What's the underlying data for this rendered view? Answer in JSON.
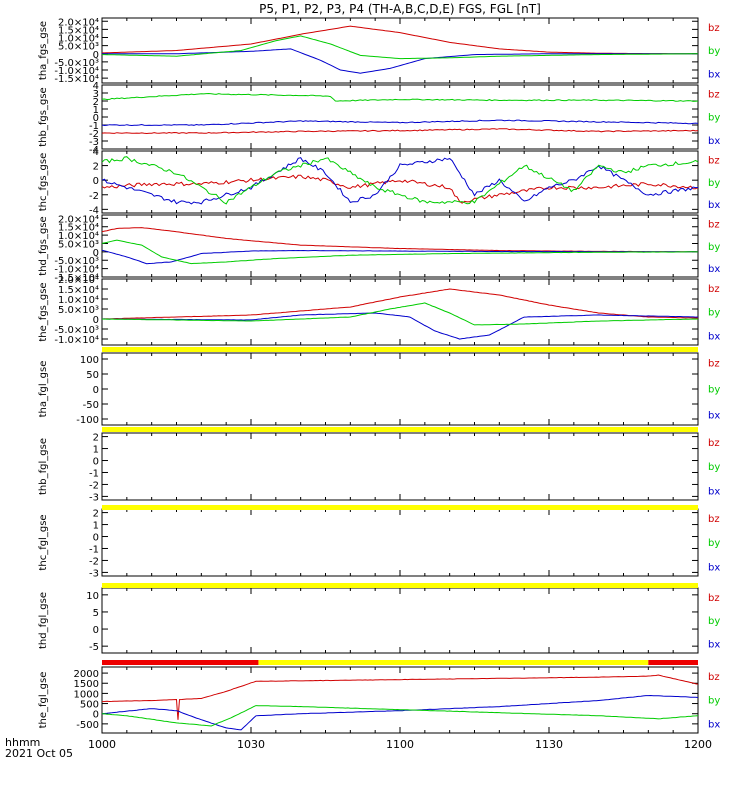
{
  "title": "P5, P1, P2, P3, P4 (TH-A,B,C,D,E) FGS, FGL [nT]",
  "time_axis": {
    "ticks": [
      "1000",
      "1030",
      "1100",
      "1130",
      "1200"
    ],
    "label_line1": "hhmm",
    "label_line2": "2021 Oct 05",
    "range_minutes": [
      0,
      120
    ]
  },
  "colors": {
    "bz": "#d00000",
    "by": "#00cc00",
    "bx": "#0000cc",
    "bar_yellow": "#ffff00",
    "bar_red": "#ee0000"
  },
  "chart_data": [
    {
      "type": "line",
      "ylabel": "tha_fgs_gse",
      "ylim": [
        -18000,
        22000
      ],
      "ytick_labels": [
        "2.0×10⁴",
        "1.5×10⁴",
        "1.0×10⁴",
        "5.0×10³",
        "0",
        "-5.0×10³",
        "-1.0×10⁴",
        "-1.5×10⁴"
      ],
      "ytick_values": [
        20000,
        15000,
        10000,
        5000,
        0,
        -5000,
        -10000,
        -15000
      ],
      "legend": [
        "bz",
        "by",
        "bx"
      ],
      "series": [
        {
          "name": "bz",
          "x": [
            0,
            15,
            30,
            40,
            50,
            60,
            70,
            80,
            90,
            100,
            110,
            120
          ],
          "y": [
            500,
            2000,
            6000,
            12000,
            17000,
            13000,
            7000,
            3000,
            1000,
            300,
            100,
            0
          ]
        },
        {
          "name": "by",
          "x": [
            0,
            15,
            28,
            35,
            40,
            46,
            52,
            60,
            70,
            80,
            100,
            120
          ],
          "y": [
            -500,
            -1500,
            2000,
            8000,
            11000,
            6000,
            -1000,
            -3000,
            -2500,
            -1500,
            -500,
            0
          ]
        },
        {
          "name": "bx",
          "x": [
            0,
            15,
            30,
            38,
            44,
            48,
            52,
            58,
            65,
            75,
            90,
            120
          ],
          "y": [
            0,
            0,
            1500,
            3000,
            -4000,
            -10000,
            -12000,
            -9000,
            -3000,
            -500,
            0,
            0
          ]
        }
      ]
    },
    {
      "type": "line",
      "ylabel": "thb_fgs_gse",
      "ylim": [
        -4,
        4
      ],
      "ytick_labels": [
        "4",
        "3",
        "2",
        "1",
        "0",
        "-1",
        "-2",
        "-3",
        "-4"
      ],
      "ytick_values": [
        4,
        3,
        2,
        1,
        0,
        -1,
        -2,
        -3,
        -4
      ],
      "legend": [
        "bz",
        "by",
        "bx"
      ],
      "series": [
        {
          "name": "bz",
          "x": [
            0,
            20,
            40,
            60,
            80,
            100,
            120
          ],
          "y": [
            -2,
            -2,
            -1.8,
            -1.7,
            -1.5,
            -1.8,
            -1.7
          ]
        },
        {
          "name": "by",
          "x": [
            0,
            20,
            40,
            46,
            47,
            60,
            80,
            100,
            120
          ],
          "y": [
            2.2,
            2.9,
            2.7,
            2.6,
            2.0,
            2.2,
            2.1,
            2.1,
            2.0
          ]
        },
        {
          "name": "bx",
          "x": [
            0,
            20,
            40,
            60,
            80,
            100,
            120
          ],
          "y": [
            -1,
            -1,
            -0.5,
            -0.7,
            -0.4,
            -0.6,
            -0.8
          ]
        }
      ]
    },
    {
      "type": "line",
      "ylabel": "thc_fgs_gse",
      "ylim": [
        -4.5,
        4
      ],
      "ytick_labels": [
        "4",
        "2",
        "0",
        "-2",
        "-4"
      ],
      "ytick_values": [
        4,
        2,
        0,
        -2,
        -4
      ],
      "legend": [
        "bz",
        "by",
        "bx"
      ],
      "series": [
        {
          "name": "bz",
          "x": [
            0,
            10,
            20,
            30,
            40,
            45,
            50,
            60,
            70,
            72,
            80,
            90,
            100,
            110,
            120
          ],
          "y": [
            -1,
            -0.5,
            -0.5,
            0,
            0.5,
            0,
            -1,
            0,
            -1,
            -3,
            -2,
            -1,
            -1,
            -0.5,
            -1
          ]
        },
        {
          "name": "by",
          "x": [
            0,
            5,
            15,
            25,
            35,
            45,
            55,
            65,
            75,
            85,
            95,
            100,
            105,
            110,
            120
          ],
          "y": [
            2.5,
            3,
            1,
            -3,
            1,
            3,
            -1,
            -3,
            -3,
            2,
            -1.5,
            2,
            1,
            2,
            2.5
          ]
        },
        {
          "name": "bx",
          "x": [
            0,
            10,
            15,
            20,
            30,
            40,
            45,
            50,
            55,
            60,
            70,
            75,
            80,
            85,
            90,
            95,
            100,
            110,
            120
          ],
          "y": [
            0,
            -2,
            -3,
            -3,
            -1,
            3,
            1,
            -3,
            -2,
            2,
            3,
            -2,
            0,
            -3,
            -1,
            0,
            2,
            -2,
            -1
          ]
        }
      ]
    },
    {
      "type": "line",
      "ylabel": "thd_fgs_gse",
      "ylim": [
        -15000,
        22000
      ],
      "ytick_labels": [
        "2.0×10⁴",
        "1.5×10⁴",
        "1.0×10⁴",
        "5.0×10³",
        "0",
        "-5.0×10³",
        "-1.0×10⁴",
        "-1.5×10⁴"
      ],
      "ytick_values": [
        20000,
        15000,
        10000,
        5000,
        0,
        -5000,
        -10000,
        -15000
      ],
      "legend": [
        "bz",
        "by",
        "bx"
      ],
      "series": [
        {
          "name": "bz",
          "x": [
            0,
            3,
            8,
            15,
            25,
            40,
            60,
            80,
            100,
            120
          ],
          "y": [
            12000,
            14000,
            14500,
            12000,
            8000,
            4000,
            2000,
            800,
            300,
            0
          ]
        },
        {
          "name": "by",
          "x": [
            0,
            3,
            8,
            12,
            18,
            25,
            35,
            50,
            70,
            100,
            120
          ],
          "y": [
            5000,
            7000,
            4000,
            -3000,
            -7000,
            -6000,
            -4000,
            -2000,
            -1000,
            -200,
            0
          ]
        },
        {
          "name": "bx",
          "x": [
            0,
            5,
            9,
            14,
            20,
            30,
            40,
            60,
            80,
            120
          ],
          "y": [
            1000,
            -3000,
            -7000,
            -6000,
            -1000,
            500,
            800,
            500,
            200,
            0
          ]
        }
      ]
    },
    {
      "type": "line",
      "ylabel": "the_fgs_gse",
      "ylim": [
        -13000,
        20000
      ],
      "ytick_labels": [
        "2.0×10⁴",
        "1.5×10⁴",
        "1.0×10⁴",
        "5.0×10³",
        "0",
        "-5.0×10³",
        "-1.0×10⁴"
      ],
      "ytick_values": [
        20000,
        15000,
        10000,
        5000,
        0,
        -5000,
        -10000
      ],
      "legend": [
        "bz",
        "by",
        "bx"
      ],
      "series": [
        {
          "name": "bz",
          "x": [
            0,
            30,
            50,
            60,
            70,
            80,
            90,
            100,
            110,
            120
          ],
          "y": [
            0,
            2000,
            6000,
            11000,
            15000,
            12000,
            7000,
            3000,
            1000,
            500
          ]
        },
        {
          "name": "by",
          "x": [
            0,
            30,
            50,
            58,
            65,
            70,
            75,
            85,
            100,
            120
          ],
          "y": [
            0,
            -1000,
            1000,
            5000,
            8000,
            3000,
            -3000,
            -2500,
            -1000,
            0
          ]
        },
        {
          "name": "bx",
          "x": [
            0,
            30,
            40,
            55,
            62,
            67,
            72,
            78,
            85,
            100,
            120
          ],
          "y": [
            0,
            -500,
            2000,
            3000,
            1000,
            -6000,
            -10000,
            -8000,
            1000,
            2000,
            1000
          ]
        }
      ]
    },
    {
      "type": "line",
      "ylabel": "tha_fgl_gse",
      "ylim": [
        -120,
        120
      ],
      "ytick_labels": [
        "100",
        "50",
        "0",
        "-50",
        "-100"
      ],
      "ytick_values": [
        100,
        50,
        0,
        -50,
        -100
      ],
      "legend": [
        "bz",
        "by",
        "bx"
      ],
      "series": []
    },
    {
      "type": "line",
      "ylabel": "thb_fgl_gse",
      "ylim": [
        -3.3,
        2.3
      ],
      "ytick_labels": [
        "2",
        "1",
        "0",
        "-1",
        "-2",
        "-3"
      ],
      "ytick_values": [
        2,
        1,
        0,
        -1,
        -2,
        -3
      ],
      "legend": [
        "bz",
        "by",
        "bx"
      ],
      "series": []
    },
    {
      "type": "line",
      "ylabel": "thc_fgl_gse",
      "ylim": [
        -3.3,
        2.3
      ],
      "ytick_labels": [
        "2",
        "1",
        "0",
        "-1",
        "-2",
        "-3"
      ],
      "ytick_values": [
        2,
        1,
        0,
        -1,
        -2,
        -3
      ],
      "legend": [
        "bz",
        "by",
        "bx"
      ],
      "series": []
    },
    {
      "type": "line",
      "ylabel": "thd_fgl_gse",
      "ylim": [
        -7,
        12
      ],
      "ytick_labels": [
        "10",
        "5",
        "0",
        "-5"
      ],
      "ytick_values": [
        10,
        5,
        0,
        -5
      ],
      "legend": [
        "bz",
        "by",
        "bx"
      ],
      "series": []
    },
    {
      "type": "line",
      "ylabel": "the_fgl_gse",
      "ylim": [
        -950,
        2300
      ],
      "ytick_labels": [
        "2000",
        "1500",
        "1000",
        "500",
        "0",
        "-500"
      ],
      "ytick_values": [
        2000,
        1500,
        1000,
        500,
        0,
        -500
      ],
      "legend": [
        "bz",
        "by",
        "bx"
      ],
      "series": [
        {
          "name": "bz",
          "x": [
            0,
            10,
            15,
            15.3,
            15.6,
            20,
            25,
            31,
            40,
            60,
            80,
            100,
            110,
            112,
            120
          ],
          "y": [
            600,
            650,
            700,
            -300,
            700,
            750,
            1100,
            1600,
            1620,
            1680,
            1740,
            1800,
            1850,
            1900,
            1450
          ]
        },
        {
          "name": "by",
          "x": [
            0,
            5,
            15,
            22,
            26,
            31,
            40,
            60,
            80,
            100,
            112,
            120
          ],
          "y": [
            0,
            -100,
            -450,
            -600,
            -200,
            400,
            350,
            200,
            50,
            -100,
            -250,
            -100
          ]
        },
        {
          "name": "bx",
          "x": [
            0,
            10,
            15,
            20,
            25,
            28,
            31,
            40,
            60,
            80,
            100,
            110,
            120
          ],
          "y": [
            0,
            250,
            150,
            -300,
            -700,
            -800,
            -100,
            0,
            150,
            350,
            650,
            900,
            800
          ]
        }
      ]
    }
  ],
  "status_bars": [
    {
      "after_panel": 5,
      "segments": [
        {
          "from": 0,
          "to": 120,
          "color": "yellow"
        }
      ]
    },
    {
      "after_panel": 6,
      "segments": [
        {
          "from": 0,
          "to": 120,
          "color": "yellow"
        }
      ]
    },
    {
      "after_panel": 7,
      "segments": [
        {
          "from": 0,
          "to": 120,
          "color": "yellow"
        }
      ]
    },
    {
      "after_panel": 8,
      "segments": [
        {
          "from": 0,
          "to": 120,
          "color": "yellow"
        }
      ]
    },
    {
      "after_panel": 9,
      "segments": [
        {
          "from": 0,
          "to": 31.5,
          "color": "red"
        },
        {
          "from": 31.5,
          "to": 110,
          "color": "yellow"
        },
        {
          "from": 110,
          "to": 120,
          "color": "red"
        }
      ]
    }
  ]
}
